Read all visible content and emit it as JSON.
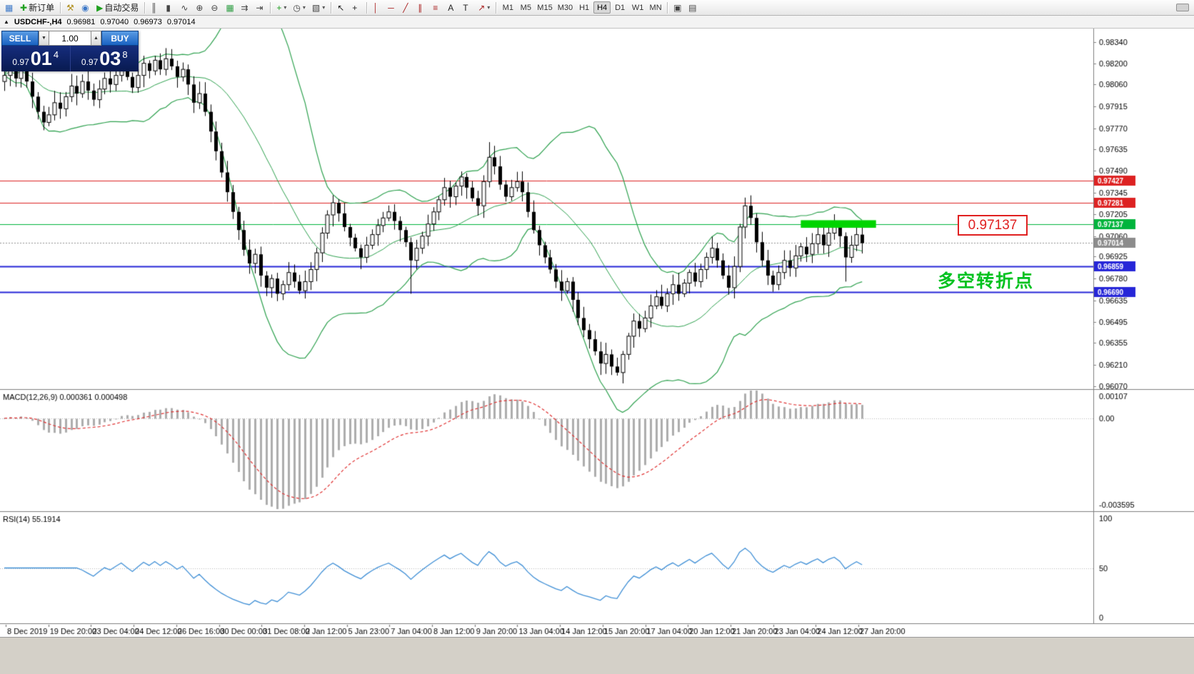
{
  "colors": {
    "bollinger": "#2da14e",
    "macd_hist": "#adadad",
    "macd_signal": "#e03030",
    "rsi_line": "#3f8fd6",
    "highlight_rect": "#00d400",
    "current_tag": "#8c8c8c",
    "grid_dotted": "#b8b8b8"
  },
  "toolbar": {
    "caret_glyph": "▾",
    "items": [
      {
        "t": "btn",
        "name": "chart-window-icon",
        "glyph": "▦",
        "color": "#3c78c8"
      },
      {
        "t": "btn",
        "name": "new-order-button",
        "glyph": "✚",
        "color": "#1ea01e",
        "label": "新订单"
      },
      {
        "t": "sep"
      },
      {
        "t": "btn",
        "name": "expert-advisors-icon",
        "glyph": "⚒",
        "color": "#b08f1e"
      },
      {
        "t": "btn",
        "name": "metaeditor-icon",
        "glyph": "◉",
        "color": "#3c78c8"
      },
      {
        "t": "btn",
        "name": "autotrading-button",
        "glyph": "▶",
        "color": "#1ea01e",
        "label": "自动交易"
      },
      {
        "t": "sep"
      },
      {
        "t": "btn",
        "name": "bar-chart-mode-icon",
        "glyph": "║",
        "color": "#444444"
      },
      {
        "t": "btn",
        "name": "candle-chart-mode-icon",
        "glyph": "▮",
        "color": "#444444"
      },
      {
        "t": "btn",
        "name": "line-chart-mode-icon",
        "glyph": "∿",
        "color": "#444444"
      },
      {
        "t": "btn",
        "name": "zoom-in-icon",
        "glyph": "⊕",
        "color": "#444444"
      },
      {
        "t": "btn",
        "name": "zoom-out-icon",
        "glyph": "⊖",
        "color": "#444444"
      },
      {
        "t": "btn",
        "name": "tile-windows-icon",
        "glyph": "▦",
        "color": "#2f9e44"
      },
      {
        "t": "btn",
        "name": "auto-scroll-icon",
        "glyph": "⇉",
        "color": "#444444"
      },
      {
        "t": "btn",
        "name": "chart-shift-icon",
        "glyph": "⇥",
        "color": "#444444"
      },
      {
        "t": "sep"
      },
      {
        "t": "btn",
        "name": "indicators-icon",
        "glyph": "+",
        "color": "#1ea01e",
        "caret": true
      },
      {
        "t": "btn",
        "name": "periods-icon",
        "glyph": "◷",
        "color": "#444444",
        "caret": true
      },
      {
        "t": "btn",
        "name": "templates-icon",
        "glyph": "▧",
        "color": "#444444",
        "caret": true
      },
      {
        "t": "sep"
      },
      {
        "t": "btn",
        "name": "cursor-icon",
        "glyph": "↖",
        "color": "#222222"
      },
      {
        "t": "btn",
        "name": "crosshair-icon",
        "glyph": "+",
        "color": "#222222"
      },
      {
        "t": "sep"
      },
      {
        "t": "btn",
        "name": "vertical-line-icon",
        "glyph": "│",
        "color": "#aa2222"
      },
      {
        "t": "btn",
        "name": "horizontal-line-icon",
        "glyph": "─",
        "color": "#aa2222"
      },
      {
        "t": "btn",
        "name": "trendline-icon",
        "glyph": "╱",
        "color": "#aa2222"
      },
      {
        "t": "btn",
        "name": "channel-icon",
        "glyph": "∥",
        "color": "#aa2222"
      },
      {
        "t": "btn",
        "name": "fibonacci-icon",
        "glyph": "≡",
        "color": "#aa2222"
      },
      {
        "t": "btn",
        "name": "text-icon",
        "glyph": "A",
        "color": "#222222"
      },
      {
        "t": "btn",
        "name": "text-label-icon",
        "glyph": "T",
        "color": "#222222"
      },
      {
        "t": "btn",
        "name": "arrow-objects-icon",
        "glyph": "↗",
        "color": "#aa2222",
        "caret": true
      },
      {
        "t": "sep"
      }
    ],
    "timeframes": {
      "labels": [
        "M1",
        "M5",
        "M15",
        "M30",
        "H1",
        "H4",
        "D1",
        "W1",
        "MN"
      ],
      "active": "H4"
    },
    "right_items": [
      {
        "t": "sep"
      },
      {
        "t": "btn",
        "name": "cascade-windows-icon",
        "glyph": "▣",
        "color": "#444444"
      },
      {
        "t": "btn",
        "name": "arrange-windows-icon",
        "glyph": "▤",
        "color": "#444444"
      }
    ]
  },
  "chart_header": {
    "collapse_icon": "▲",
    "symbol": "USDCHF-,H4",
    "open": "0.96981",
    "high": "0.97040",
    "low": "0.96973",
    "close": "0.97014"
  },
  "trade_panel": {
    "sell_label": "SELL",
    "buy_label": "BUY",
    "volume": "1.00",
    "spin_down_glyph": "▼",
    "spin_up_glyph": "▲",
    "sell_price": {
      "prefix": "0.97",
      "big": "01",
      "sup": "4"
    },
    "buy_price": {
      "prefix": "0.97",
      "big": "03",
      "sup": "8"
    }
  },
  "annotations": {
    "price_callout": "0.97137",
    "pivot_text": "多空转折点"
  },
  "chart_data": {
    "type": "candlestick",
    "symbol": "USDCHF",
    "timeframe": "H4",
    "price_axis": {
      "top_price": 0.98429,
      "bottom_price": 0.96051,
      "labels": [
        "0.98340",
        "0.98200",
        "0.98060",
        "0.97915",
        "0.97770",
        "0.97635",
        "0.97490",
        "0.97345",
        "0.97205",
        "0.97060",
        "0.96925",
        "0.96780",
        "0.96635",
        "0.96495",
        "0.96355",
        "0.96210",
        "0.96070"
      ]
    },
    "time_axis": [
      "8 Dec 2019",
      "19 Dec 20:00",
      "23 Dec 04:00",
      "24 Dec 12:00",
      "26 Dec 16:00",
      "30 Dec 00:00",
      "31 Dec 08:00",
      "2 Jan 12:00",
      "5 Jan 23:00",
      "7 Jan 04:00",
      "8 Jan 12:00",
      "9 Jan 20:00",
      "13 Jan 04:00",
      "14 Jan 12:00",
      "15 Jan 20:00",
      "17 Jan 04:00",
      "20 Jan 12:00",
      "21 Jan 20:00",
      "23 Jan 04:00",
      "24 Jan 12:00",
      "27 Jan 20:00"
    ],
    "first_open": 0.9808,
    "closes": [
      0.9812,
      0.9817,
      0.981,
      0.9819,
      0.9808,
      0.9798,
      0.9788,
      0.9781,
      0.9786,
      0.9794,
      0.979,
      0.9798,
      0.9805,
      0.98,
      0.9808,
      0.9802,
      0.9796,
      0.9803,
      0.981,
      0.9806,
      0.9812,
      0.9818,
      0.9811,
      0.9804,
      0.9812,
      0.982,
      0.9815,
      0.9822,
      0.9816,
      0.9823,
      0.9818,
      0.9811,
      0.9816,
      0.9806,
      0.9794,
      0.98,
      0.9788,
      0.9775,
      0.9762,
      0.9748,
      0.9735,
      0.9722,
      0.971,
      0.9697,
      0.9688,
      0.9694,
      0.968,
      0.9672,
      0.9678,
      0.9668,
      0.9674,
      0.9682,
      0.9676,
      0.967,
      0.9676,
      0.9684,
      0.9695,
      0.9708,
      0.972,
      0.9728,
      0.9721,
      0.9712,
      0.9705,
      0.9698,
      0.9692,
      0.97,
      0.9707,
      0.9713,
      0.9718,
      0.9722,
      0.9716,
      0.971,
      0.9702,
      0.969,
      0.9698,
      0.9706,
      0.9714,
      0.9722,
      0.973,
      0.9738,
      0.9732,
      0.9739,
      0.9745,
      0.9738,
      0.9731,
      0.9726,
      0.9742,
      0.9758,
      0.9752,
      0.974,
      0.9732,
      0.9738,
      0.9742,
      0.9735,
      0.9722,
      0.971,
      0.97,
      0.9692,
      0.9684,
      0.9676,
      0.967,
      0.9676,
      0.9664,
      0.9652,
      0.9644,
      0.9638,
      0.963,
      0.9622,
      0.9628,
      0.962,
      0.9616,
      0.9628,
      0.964,
      0.965,
      0.9645,
      0.9652,
      0.966,
      0.9666,
      0.966,
      0.9668,
      0.9674,
      0.9668,
      0.9675,
      0.9682,
      0.9676,
      0.9684,
      0.9692,
      0.9698,
      0.969,
      0.968,
      0.9672,
      0.9686,
      0.9712,
      0.9726,
      0.9718,
      0.9702,
      0.969,
      0.968,
      0.9674,
      0.9682,
      0.969,
      0.9685,
      0.9693,
      0.9699,
      0.9694,
      0.9701,
      0.9707,
      0.97,
      0.9708,
      0.9713,
      0.9706,
      0.9692,
      0.97,
      0.9707,
      0.97014
    ],
    "wick_overrides": {
      "29": {
        "high": 0.983
      },
      "59": {
        "high": 0.9733
      },
      "73": {
        "low": 0.9668
      },
      "87": {
        "high": 0.9768
      },
      "110": {
        "low": 0.9614
      },
      "151": {
        "low": 0.9676
      }
    },
    "hlines": [
      {
        "price": 0.97427,
        "label": "0.97427",
        "color": "#dd2222",
        "width": 1
      },
      {
        "price": 0.97281,
        "label": "0.97281",
        "color": "#dd2222",
        "width": 1
      },
      {
        "price": 0.97137,
        "label": "0.97137",
        "color": "#00b43c",
        "width": 1
      },
      {
        "price": 0.96859,
        "label": "0.96859",
        "color": "#2626d8",
        "width": 2
      },
      {
        "price": 0.9669,
        "label": "0.96690",
        "color": "#2626d8",
        "width": 2
      }
    ],
    "bid": {
      "price": 0.97014,
      "label": "0.97014"
    },
    "highlight_rect": {
      "start_index": 143,
      "end_index": 156.5,
      "price_top": 0.97165,
      "price_bottom": 0.97115
    },
    "bollinger": {
      "period": 20,
      "deviation": 2
    },
    "macd": {
      "label": "MACD(12,26,9)",
      "value_main": "0.000361",
      "value_signal": "0.000498",
      "fast": 12,
      "slow": 26,
      "signal": 9,
      "axis_max": 0.00107,
      "axis_min": -0.003595,
      "axis_labels": [
        "0.00107",
        "0.00",
        "-0.003595"
      ]
    },
    "rsi": {
      "label": "RSI(14)",
      "value": "55.1914",
      "period": 14,
      "axis_labels": [
        "100",
        "50",
        "0"
      ]
    }
  }
}
